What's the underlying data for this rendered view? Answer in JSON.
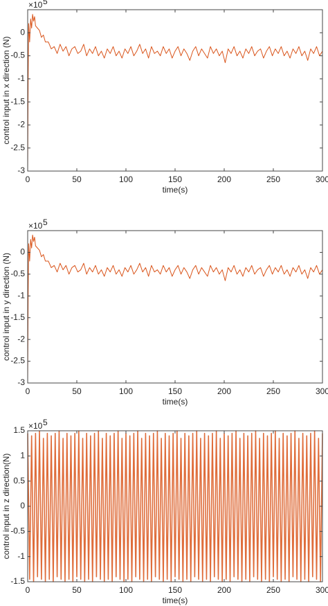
{
  "chart_data": [
    {
      "type": "line",
      "ylabel": "control input in x direction (N)",
      "xlabel": "time(s)",
      "y_exponent_base": "×10",
      "y_exponent": "5",
      "color": "#d95319",
      "xlim": [
        0,
        300
      ],
      "xticks": [
        0,
        50,
        100,
        150,
        200,
        250,
        300
      ],
      "ylim": [
        -3,
        0.5
      ],
      "yticks": [
        -3,
        -2.5,
        -2,
        -1.5,
        -1,
        -0.5,
        0
      ],
      "x": [
        0,
        0.5,
        1,
        2,
        3,
        4,
        5,
        6,
        7,
        8,
        10,
        12,
        14,
        16,
        18,
        21,
        24,
        27,
        30,
        33,
        36,
        39,
        42,
        45,
        48,
        51,
        54,
        57,
        60,
        63,
        66,
        69,
        72,
        75,
        78,
        81,
        84,
        87,
        90,
        93,
        96,
        99,
        102,
        105,
        108,
        111,
        114,
        117,
        120,
        123,
        126,
        129,
        132,
        135,
        138,
        141,
        144,
        147,
        150,
        153,
        156,
        159,
        162,
        165,
        168,
        171,
        174,
        177,
        180,
        183,
        186,
        189,
        192,
        195,
        198,
        201,
        204,
        207,
        210,
        213,
        216,
        219,
        222,
        225,
        228,
        231,
        234,
        237,
        240,
        243,
        246,
        249,
        252,
        255,
        258,
        261,
        264,
        267,
        270,
        273,
        276,
        279,
        282,
        285,
        288,
        291,
        294,
        297,
        300
      ],
      "values": [
        -3,
        -1,
        0.2,
        -0.2,
        0.3,
        0.1,
        0.4,
        0.25,
        0.35,
        0.15,
        0.1,
        0.05,
        -0.1,
        -0.05,
        -0.2,
        -0.2,
        -0.35,
        -0.3,
        -0.45,
        -0.25,
        -0.4,
        -0.3,
        -0.5,
        -0.35,
        -0.3,
        -0.45,
        -0.4,
        -0.25,
        -0.5,
        -0.35,
        -0.45,
        -0.3,
        -0.5,
        -0.4,
        -0.55,
        -0.35,
        -0.45,
        -0.3,
        -0.5,
        -0.4,
        -0.55,
        -0.35,
        -0.45,
        -0.3,
        -0.5,
        -0.4,
        -0.25,
        -0.45,
        -0.35,
        -0.55,
        -0.3,
        -0.45,
        -0.4,
        -0.5,
        -0.3,
        -0.45,
        -0.35,
        -0.55,
        -0.4,
        -0.3,
        -0.5,
        -0.35,
        -0.45,
        -0.6,
        -0.4,
        -0.3,
        -0.5,
        -0.35,
        -0.45,
        -0.55,
        -0.3,
        -0.45,
        -0.35,
        -0.5,
        -0.4,
        -0.65,
        -0.35,
        -0.45,
        -0.3,
        -0.5,
        -0.4,
        -0.55,
        -0.35,
        -0.45,
        -0.3,
        -0.5,
        -0.4,
        -0.35,
        -0.55,
        -0.4,
        -0.3,
        -0.5,
        -0.35,
        -0.45,
        -0.3,
        -0.5,
        -0.4,
        -0.55,
        -0.35,
        -0.45,
        -0.3,
        -0.5,
        -0.4,
        -0.6,
        -0.35,
        -0.45,
        -0.3,
        -0.5,
        -0.4
      ]
    },
    {
      "type": "line",
      "ylabel": "control input in y direction (N)",
      "xlabel": "time(s)",
      "y_exponent_base": "×10",
      "y_exponent": "5",
      "color": "#d95319",
      "xlim": [
        0,
        300
      ],
      "xticks": [
        0,
        50,
        100,
        150,
        200,
        250,
        300
      ],
      "ylim": [
        -3,
        0.5
      ],
      "yticks": [
        -3,
        -2.5,
        -2,
        -1.5,
        -1,
        -0.5,
        0
      ],
      "x": [
        0,
        0.5,
        1,
        2,
        3,
        4,
        5,
        6,
        7,
        8,
        10,
        12,
        14,
        16,
        18,
        21,
        24,
        27,
        30,
        33,
        36,
        39,
        42,
        45,
        48,
        51,
        54,
        57,
        60,
        63,
        66,
        69,
        72,
        75,
        78,
        81,
        84,
        87,
        90,
        93,
        96,
        99,
        102,
        105,
        108,
        111,
        114,
        117,
        120,
        123,
        126,
        129,
        132,
        135,
        138,
        141,
        144,
        147,
        150,
        153,
        156,
        159,
        162,
        165,
        168,
        171,
        174,
        177,
        180,
        183,
        186,
        189,
        192,
        195,
        198,
        201,
        204,
        207,
        210,
        213,
        216,
        219,
        222,
        225,
        228,
        231,
        234,
        237,
        240,
        243,
        246,
        249,
        252,
        255,
        258,
        261,
        264,
        267,
        270,
        273,
        276,
        279,
        282,
        285,
        288,
        291,
        294,
        297,
        300
      ],
      "values": [
        -3,
        -1,
        0.2,
        -0.2,
        0.3,
        0.1,
        0.4,
        0.25,
        0.35,
        0.15,
        0.1,
        0.05,
        -0.1,
        -0.05,
        -0.2,
        -0.2,
        -0.35,
        -0.3,
        -0.45,
        -0.25,
        -0.4,
        -0.3,
        -0.5,
        -0.35,
        -0.3,
        -0.45,
        -0.4,
        -0.25,
        -0.5,
        -0.35,
        -0.45,
        -0.3,
        -0.5,
        -0.4,
        -0.55,
        -0.35,
        -0.45,
        -0.3,
        -0.5,
        -0.4,
        -0.55,
        -0.35,
        -0.45,
        -0.3,
        -0.5,
        -0.4,
        -0.25,
        -0.45,
        -0.35,
        -0.55,
        -0.3,
        -0.45,
        -0.4,
        -0.5,
        -0.3,
        -0.45,
        -0.35,
        -0.55,
        -0.4,
        -0.3,
        -0.5,
        -0.35,
        -0.45,
        -0.6,
        -0.4,
        -0.3,
        -0.5,
        -0.35,
        -0.45,
        -0.55,
        -0.3,
        -0.45,
        -0.35,
        -0.5,
        -0.4,
        -0.65,
        -0.35,
        -0.45,
        -0.3,
        -0.5,
        -0.4,
        -0.55,
        -0.35,
        -0.45,
        -0.3,
        -0.5,
        -0.4,
        -0.35,
        -0.55,
        -0.4,
        -0.3,
        -0.5,
        -0.35,
        -0.45,
        -0.3,
        -0.5,
        -0.4,
        -0.55,
        -0.35,
        -0.45,
        -0.3,
        -0.5,
        -0.4,
        -0.6,
        -0.35,
        -0.45,
        -0.3,
        -0.5,
        -0.4
      ]
    },
    {
      "type": "line",
      "ylabel": "control input in z direction(N)",
      "xlabel": "time(s)",
      "y_exponent_base": "×10",
      "y_exponent": "5",
      "color": "#d95319",
      "xlim": [
        0,
        300
      ],
      "xticks": [
        0,
        50,
        100,
        150,
        200,
        250,
        300
      ],
      "ylim": [
        -1.5,
        1.5
      ],
      "yticks": [
        -1.5,
        -1,
        -0.5,
        0,
        0.5,
        1,
        1.5
      ],
      "x": [
        0,
        2,
        4,
        6,
        8,
        10,
        12,
        14,
        16,
        18,
        20,
        22,
        24,
        26,
        28,
        30,
        32,
        34,
        36,
        38,
        40,
        42,
        44,
        46,
        48,
        50,
        52,
        54,
        56,
        58,
        60,
        62,
        64,
        66,
        68,
        70,
        72,
        74,
        76,
        78,
        80,
        82,
        84,
        86,
        88,
        90,
        92,
        94,
        96,
        98,
        100,
        102,
        104,
        106,
        108,
        110,
        112,
        114,
        116,
        118,
        120,
        122,
        124,
        126,
        128,
        130,
        132,
        134,
        136,
        138,
        140,
        142,
        144,
        146,
        148,
        150,
        152,
        154,
        156,
        158,
        160,
        162,
        164,
        166,
        168,
        170,
        172,
        174,
        176,
        178,
        180,
        182,
        184,
        186,
        188,
        190,
        192,
        194,
        196,
        198,
        200,
        202,
        204,
        206,
        208,
        210,
        212,
        214,
        216,
        218,
        220,
        222,
        224,
        226,
        228,
        230,
        232,
        234,
        236,
        238,
        240,
        242,
        244,
        246,
        248,
        250,
        252,
        254,
        256,
        258,
        260,
        262,
        264,
        266,
        268,
        270,
        272,
        274,
        276,
        278,
        280,
        282,
        284,
        286,
        288,
        290,
        292,
        294,
        296,
        298,
        300
      ],
      "values": [
        1.45,
        -1.45,
        1.4,
        -1.5,
        1.45,
        -1.4,
        1.5,
        -1.45,
        1.35,
        -1.5,
        1.45,
        -1.45,
        1.4,
        -1.5,
        1.45,
        -1.4,
        1.5,
        -1.45,
        1.35,
        -1.5,
        1.45,
        -1.45,
        1.4,
        -1.5,
        1.45,
        -1.4,
        1.5,
        -1.45,
        1.35,
        -1.5,
        1.45,
        -1.45,
        1.4,
        -1.5,
        1.45,
        -1.4,
        1.5,
        -1.45,
        1.35,
        -1.5,
        1.45,
        -1.45,
        1.4,
        -1.5,
        1.45,
        -1.4,
        1.5,
        -1.45,
        1.35,
        -1.5,
        1.45,
        -1.45,
        1.4,
        -1.5,
        1.45,
        -1.4,
        1.5,
        -1.45,
        1.35,
        -1.5,
        1.45,
        -1.45,
        1.4,
        -1.5,
        1.45,
        -1.4,
        1.5,
        -1.45,
        1.35,
        -1.5,
        1.45,
        -1.45,
        1.4,
        -1.5,
        1.45,
        -1.4,
        1.5,
        -1.45,
        1.35,
        -1.5,
        1.45,
        -1.45,
        1.4,
        -1.5,
        1.45,
        -1.4,
        1.5,
        -1.45,
        1.35,
        -1.5,
        1.45,
        -1.45,
        1.4,
        -1.5,
        1.45,
        -1.4,
        1.5,
        -1.45,
        1.35,
        -1.5,
        1.45,
        -1.45,
        1.4,
        -1.5,
        1.45,
        -1.4,
        1.5,
        -1.45,
        1.35,
        -1.5,
        1.45,
        -1.45,
        1.4,
        -1.5,
        1.45,
        -1.4,
        1.5,
        -1.45,
        1.35,
        -1.5,
        1.45,
        -1.45,
        1.4,
        -1.5,
        1.45,
        -1.4,
        1.5,
        -1.45,
        1.35,
        -1.5,
        1.45,
        -1.45,
        1.4,
        -1.5,
        1.45,
        -1.4,
        1.5,
        -1.45,
        1.35,
        -1.5,
        1.45,
        -1.45,
        1.4,
        -1.5,
        1.45,
        -1.4,
        1.5,
        -1.45,
        1.35,
        -1.5,
        1.45
      ]
    }
  ]
}
